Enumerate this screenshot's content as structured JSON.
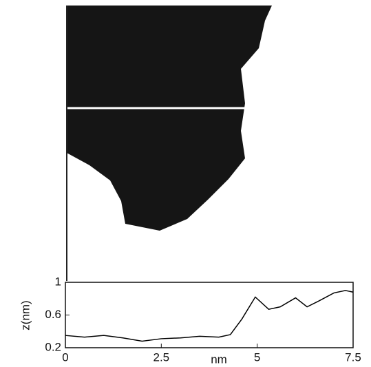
{
  "chart_data": {
    "type": "line",
    "xlabel": "nm",
    "ylabel": "z(nm)",
    "x": [
      0,
      0.5,
      1,
      1.5,
      2,
      2.5,
      3,
      3.5,
      4,
      4.3,
      4.6,
      4.95,
      5.3,
      5.6,
      6,
      6.3,
      6.6,
      7,
      7.3,
      7.5
    ],
    "values": [
      0.35,
      0.33,
      0.35,
      0.32,
      0.28,
      0.31,
      0.32,
      0.34,
      0.33,
      0.36,
      0.55,
      0.82,
      0.67,
      0.7,
      0.81,
      0.7,
      0.77,
      0.87,
      0.9,
      0.88
    ],
    "color": "#000000",
    "xlim": [
      0,
      7.5
    ],
    "xticks": [
      0,
      2.5,
      5,
      7.5
    ],
    "ylim": [
      0.2,
      1
    ],
    "yticks": [
      0.2,
      0.6,
      1
    ]
  }
}
